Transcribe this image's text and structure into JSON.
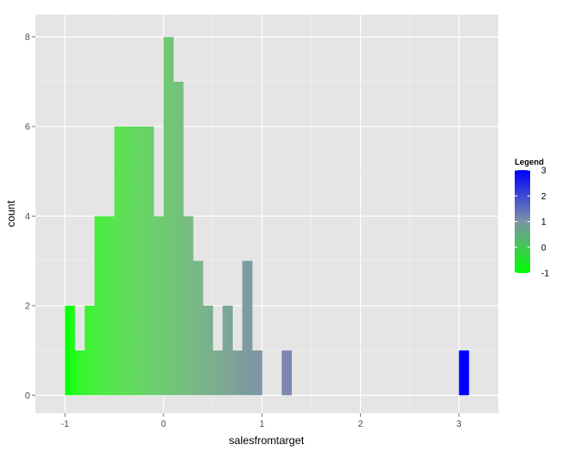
{
  "chart_data": {
    "type": "bar",
    "subtype": "histogram",
    "xlabel": "salesfromtarget",
    "ylabel": "count",
    "xlim": [
      -1.3,
      3.4
    ],
    "ylim": [
      -0.4,
      8.5
    ],
    "xticks": [
      -1,
      0,
      1,
      2,
      3
    ],
    "xtick_labels": [
      "-1",
      "0",
      "1",
      "2",
      "3"
    ],
    "yticks": [
      0,
      2,
      4,
      6,
      8
    ],
    "ytick_labels": [
      "0",
      "2",
      "4",
      "6",
      "8"
    ],
    "grid": true,
    "bin_width": 0.1,
    "bins": [
      {
        "x0": -1.0,
        "x1": -0.9,
        "count": 2
      },
      {
        "x0": -0.9,
        "x1": -0.8,
        "count": 1
      },
      {
        "x0": -0.8,
        "x1": -0.7,
        "count": 2
      },
      {
        "x0": -0.7,
        "x1": -0.6,
        "count": 4
      },
      {
        "x0": -0.6,
        "x1": -0.5,
        "count": 4
      },
      {
        "x0": -0.5,
        "x1": -0.4,
        "count": 6
      },
      {
        "x0": -0.4,
        "x1": -0.3,
        "count": 6
      },
      {
        "x0": -0.3,
        "x1": -0.2,
        "count": 6
      },
      {
        "x0": -0.2,
        "x1": -0.1,
        "count": 6
      },
      {
        "x0": -0.1,
        "x1": 0.0,
        "count": 4
      },
      {
        "x0": 0.0,
        "x1": 0.1,
        "count": 8
      },
      {
        "x0": 0.1,
        "x1": 0.2,
        "count": 7
      },
      {
        "x0": 0.2,
        "x1": 0.3,
        "count": 4
      },
      {
        "x0": 0.3,
        "x1": 0.4,
        "count": 3
      },
      {
        "x0": 0.4,
        "x1": 0.5,
        "count": 2
      },
      {
        "x0": 0.5,
        "x1": 0.6,
        "count": 1
      },
      {
        "x0": 0.6,
        "x1": 0.7,
        "count": 2
      },
      {
        "x0": 0.7,
        "x1": 0.8,
        "count": 1
      },
      {
        "x0": 0.8,
        "x1": 0.9,
        "count": 3
      },
      {
        "x0": 0.9,
        "x1": 1.0,
        "count": 1
      },
      {
        "x0": 1.2,
        "x1": 1.3,
        "count": 1
      },
      {
        "x0": 3.0,
        "x1": 3.1,
        "count": 1
      }
    ],
    "legend": {
      "title": "Legend",
      "position": "right",
      "breaks": [
        3,
        2,
        1,
        0,
        -1
      ],
      "break_labels": [
        "3",
        "2",
        "1",
        "0",
        "-1"
      ],
      "range": [
        -1,
        3
      ],
      "color_low": "#00ff00",
      "color_high": "#0000ff"
    },
    "colors": {
      "panel_background": "#e5e5e5",
      "grid_major": "#ffffff",
      "grid_minor": "#f2f2f2",
      "tick_text": "#4d4d4d"
    }
  }
}
